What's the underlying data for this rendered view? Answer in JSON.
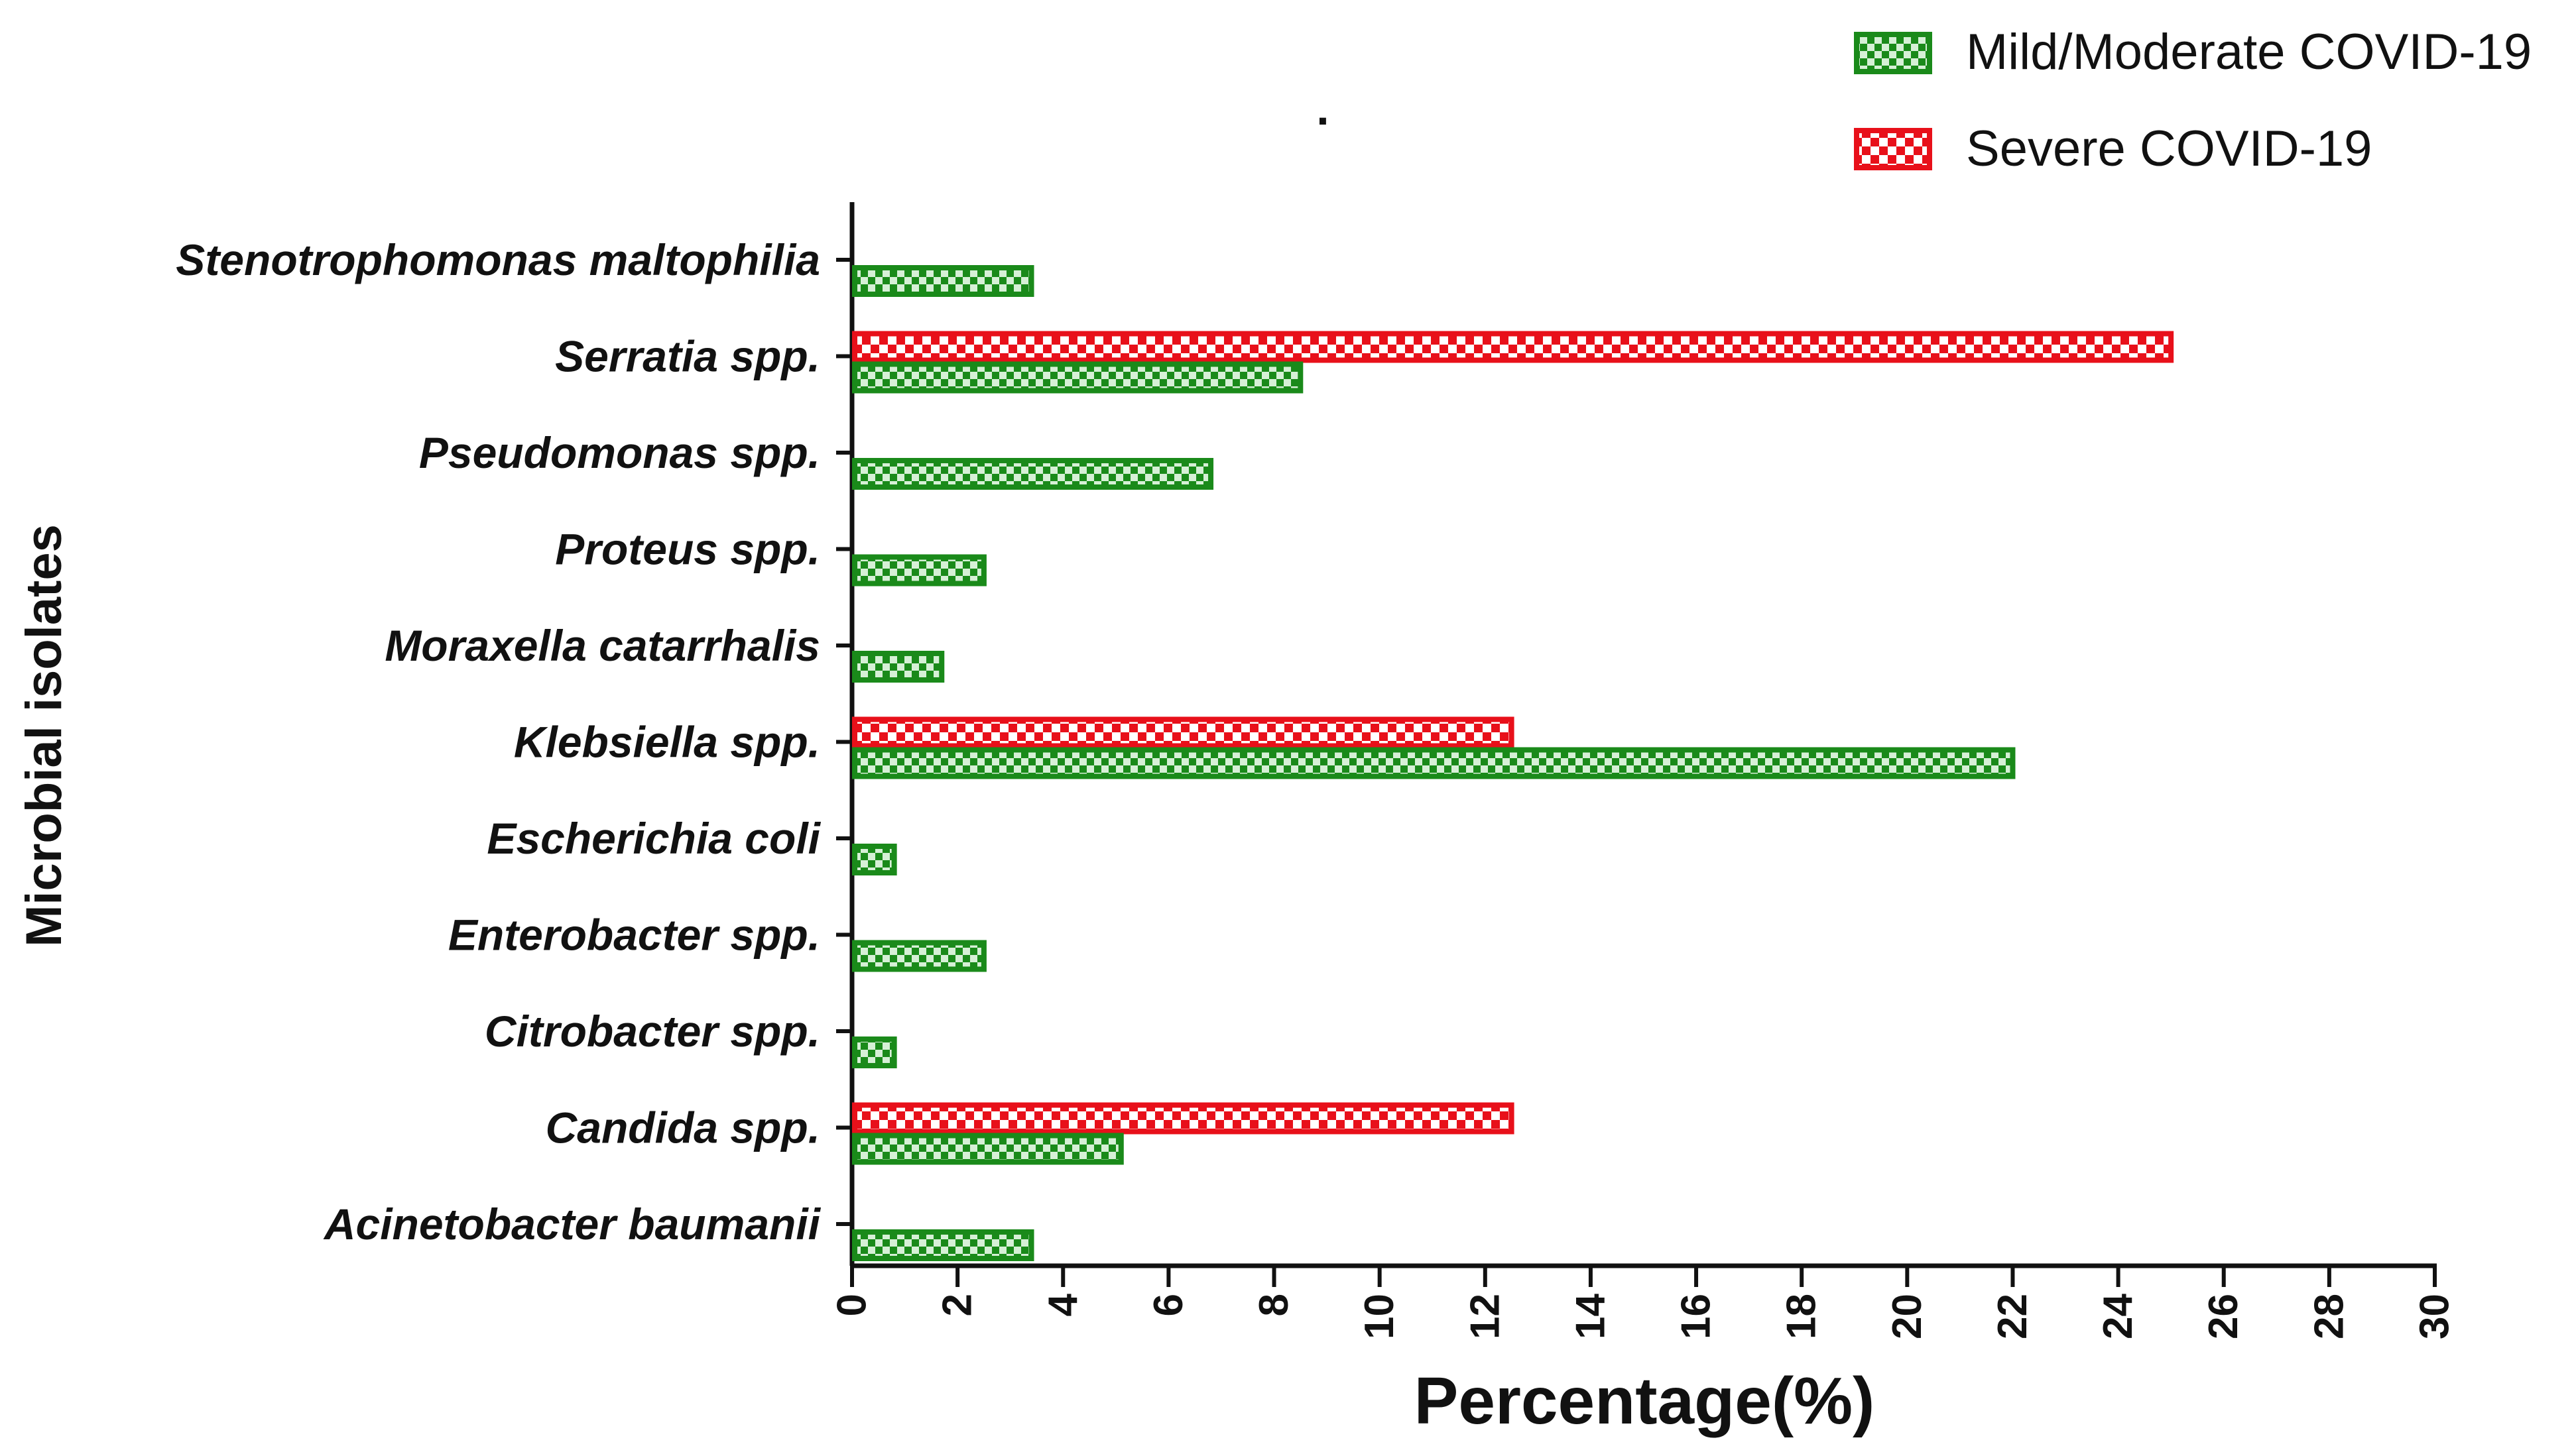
{
  "chart_data": {
    "type": "bar",
    "orientation": "horizontal",
    "title": ".",
    "xlabel": "Percentage(%)",
    "ylabel": "Microbial isolates",
    "xlim": [
      0,
      30
    ],
    "xticks": [
      "0",
      "2",
      "4",
      "6",
      "8",
      "10",
      "12",
      "14",
      "16",
      "18",
      "20",
      "22",
      "24",
      "26",
      "28",
      "30"
    ],
    "grid": false,
    "legend_position": "top-right",
    "categories": [
      "Stenotrophomonas maltophilia",
      "Serratia spp.",
      "Pseudomonas spp.",
      "Proteus spp.",
      "Moraxella catarrhalis",
      "Klebsiella spp.",
      "Escherichia coli",
      "Enterobacter spp.",
      "Citrobacter spp.",
      "Candida spp.",
      "Acinetobacter baumanii"
    ],
    "series": [
      {
        "name": "Mild/Moderate COVID-19",
        "color": "#1a8a1a",
        "pattern": "checker",
        "values": [
          3.4,
          8.5,
          6.8,
          2.5,
          1.7,
          22.0,
          0.8,
          2.5,
          0.8,
          5.1,
          3.4
        ]
      },
      {
        "name": "Severe COVID-19",
        "color": "#e8101a",
        "pattern": "checker",
        "values": [
          0,
          25.0,
          0,
          0,
          0,
          12.5,
          0,
          0,
          0,
          12.5,
          0
        ]
      }
    ]
  }
}
